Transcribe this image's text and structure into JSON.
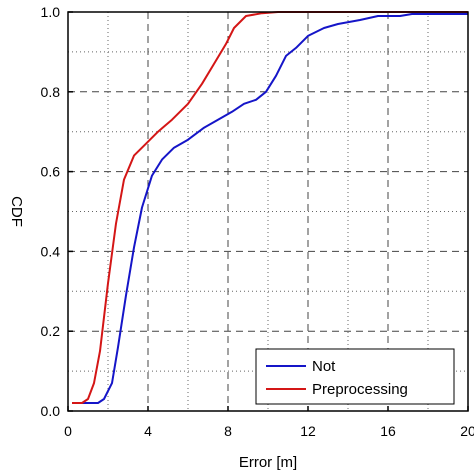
{
  "chart_data": {
    "type": "line",
    "xlabel": "Error [m]",
    "ylabel": "CDF",
    "xlim": [
      0,
      20
    ],
    "ylim": [
      0,
      1
    ],
    "x_ticks": [
      "0",
      "4",
      "8",
      "12",
      "16",
      "20"
    ],
    "y_ticks": [
      "0.0",
      "0.2",
      "0.4",
      "0.6",
      "0.8",
      "1.0"
    ],
    "x_tick_values": [
      0,
      4,
      8,
      12,
      16,
      20
    ],
    "y_tick_values": [
      0,
      0.2,
      0.4,
      0.6,
      0.8,
      1.0
    ],
    "grid": true,
    "legend_position": "bottom-right",
    "series": [
      {
        "name": "Not",
        "color": "#1515c8",
        "points": [
          [
            0.2,
            0.02
          ],
          [
            1.2,
            0.02
          ],
          [
            1.5,
            0.02
          ],
          [
            1.8,
            0.03
          ],
          [
            2.2,
            0.07
          ],
          [
            2.5,
            0.16
          ],
          [
            2.9,
            0.29
          ],
          [
            3.3,
            0.41
          ],
          [
            3.7,
            0.51
          ],
          [
            4.2,
            0.59
          ],
          [
            4.7,
            0.63
          ],
          [
            5.3,
            0.66
          ],
          [
            6.0,
            0.68
          ],
          [
            6.8,
            0.71
          ],
          [
            7.5,
            0.73
          ],
          [
            8.2,
            0.75
          ],
          [
            8.8,
            0.77
          ],
          [
            9.4,
            0.78
          ],
          [
            9.9,
            0.8
          ],
          [
            10.4,
            0.84
          ],
          [
            10.9,
            0.89
          ],
          [
            11.4,
            0.91
          ],
          [
            12.0,
            0.94
          ],
          [
            12.8,
            0.96
          ],
          [
            13.5,
            0.97
          ],
          [
            14.6,
            0.98
          ],
          [
            15.5,
            0.99
          ],
          [
            16.6,
            0.99
          ],
          [
            17.2,
            0.995
          ],
          [
            20.0,
            0.995
          ]
        ]
      },
      {
        "name": "Preprocessing",
        "color": "#d41616",
        "points": [
          [
            0.2,
            0.02
          ],
          [
            0.7,
            0.02
          ],
          [
            1.0,
            0.03
          ],
          [
            1.3,
            0.07
          ],
          [
            1.6,
            0.15
          ],
          [
            2.0,
            0.32
          ],
          [
            2.4,
            0.47
          ],
          [
            2.8,
            0.58
          ],
          [
            3.3,
            0.64
          ],
          [
            3.9,
            0.67
          ],
          [
            4.5,
            0.7
          ],
          [
            5.2,
            0.73
          ],
          [
            6.0,
            0.77
          ],
          [
            6.7,
            0.82
          ],
          [
            7.3,
            0.87
          ],
          [
            7.9,
            0.92
          ],
          [
            8.3,
            0.96
          ],
          [
            8.9,
            0.99
          ],
          [
            9.7,
            0.997
          ],
          [
            10.5,
            1.0
          ],
          [
            20.0,
            1.0
          ]
        ]
      }
    ]
  }
}
